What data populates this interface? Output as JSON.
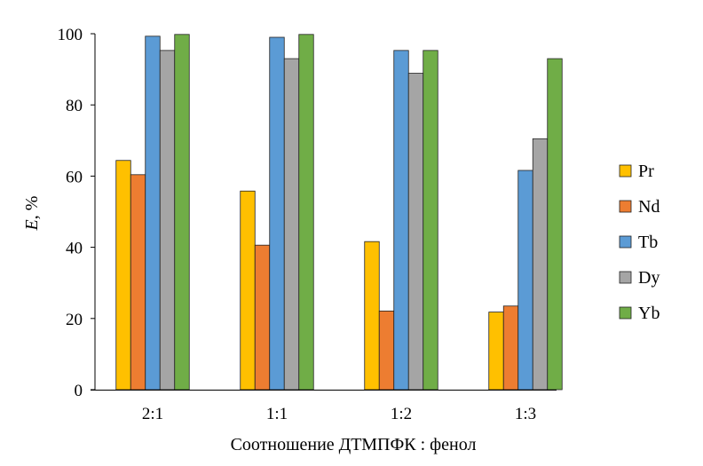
{
  "chart_data": {
    "type": "bar",
    "title": "",
    "xlabel": "Соотношение ДТМПФК : фенол",
    "ylabel_italic": "E",
    "ylabel_rest": ", %",
    "ylim": [
      0,
      100
    ],
    "yticks": [
      0,
      20,
      40,
      60,
      80,
      100
    ],
    "grid": false,
    "legend_position": "right",
    "categories": [
      "2:1",
      "1:1",
      "1:2",
      "1:3"
    ],
    "series": [
      {
        "name": "Pr",
        "color": "#FFC000",
        "values": [
          64.4,
          55.8,
          41.6,
          21.8
        ]
      },
      {
        "name": "Nd",
        "color": "#ED7D31",
        "values": [
          60.4,
          40.6,
          22.1,
          23.5
        ]
      },
      {
        "name": "Tb",
        "color": "#5B9BD5",
        "values": [
          99.3,
          99.0,
          95.3,
          61.6
        ]
      },
      {
        "name": "Dy",
        "color": "#A5A5A5",
        "values": [
          95.3,
          93.0,
          88.9,
          70.5
        ]
      },
      {
        "name": "Yb",
        "color": "#70AD47",
        "values": [
          99.8,
          99.8,
          95.3,
          93.0
        ]
      }
    ]
  }
}
